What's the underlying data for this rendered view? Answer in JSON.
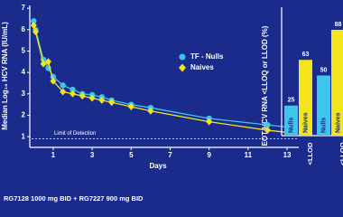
{
  "chart_data": [
    {
      "type": "line",
      "y_label": "Median Log₁₀ HCV RNA (IU/mL)",
      "x_label": "Days",
      "footnote": "RG7128 1000 mg BID + RG7227 900 mg BID",
      "x": [
        0,
        0.1,
        0.5,
        0.75,
        1,
        1.5,
        2,
        2.5,
        3,
        3.5,
        4,
        5,
        6,
        9,
        12,
        13
      ],
      "series": [
        {
          "name": "TF - Nulls",
          "color": "#3cc6ea",
          "marker": "circle",
          "values": [
            6.4,
            6.0,
            4.6,
            4.2,
            3.8,
            3.4,
            3.2,
            3.0,
            2.95,
            2.85,
            2.7,
            2.5,
            2.35,
            1.85,
            1.55,
            1.45
          ]
        },
        {
          "name": "Naives",
          "color": "#f2e51e",
          "marker": "diamond",
          "values": [
            6.2,
            5.9,
            4.4,
            4.5,
            3.6,
            3.1,
            3.0,
            2.9,
            2.8,
            2.7,
            2.6,
            2.4,
            2.2,
            1.7,
            1.3,
            1.2
          ]
        }
      ],
      "limit_of_detection": {
        "label": "Limit of Detection",
        "value": 0.9
      },
      "xlim": [
        -0.2,
        13.6
      ],
      "xticks": [
        1,
        3,
        5,
        7,
        9,
        11,
        13
      ],
      "ylim": [
        0.5,
        7.3
      ],
      "yticks": [
        1,
        2,
        3,
        4,
        5,
        6,
        7
      ]
    },
    {
      "type": "bar",
      "y_label": "EOT HCV RNA <LLOQ or LLOD (%)",
      "categories": [
        "<LLOD",
        "<LLOQ"
      ],
      "series": [
        {
          "name": "Nulls",
          "color": "#3cc6ea",
          "values": [
            25,
            50
          ]
        },
        {
          "name": "Naives",
          "color": "#f2e51e",
          "values": [
            63,
            88
          ]
        }
      ],
      "ylim": [
        0,
        100
      ]
    }
  ]
}
